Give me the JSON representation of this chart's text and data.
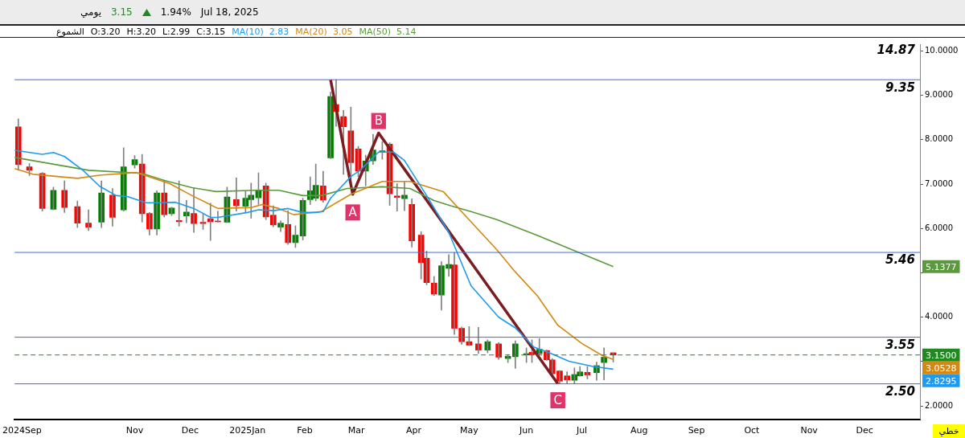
{
  "chart_data": {
    "type": "candlestick",
    "annotations": [
      "يومي",
      "3.15",
      "1.94%",
      "Jul 18, 2025",
      "الشموع",
      "O:3.20",
      "H:3.20",
      "L:2.99",
      "C:3.15",
      "14.87",
      "خطي",
      {
        "text": "A",
        "x": "2025-02-27",
        "y": 6.36
      },
      {
        "text": "B",
        "x": "2025-03-13",
        "y": 8.42
      },
      {
        "text": "C",
        "x": "2025-06-18",
        "y": 2.13
      },
      "2.83",
      "3.05",
      "5.14",
      "2.8295",
      "3.0528",
      "5.1377"
    ],
    "x": [
      "2024-08-30",
      "2024-09-05",
      "2024-09-12",
      "2024-09-18",
      "2024-09-24",
      "2024-10-01",
      "2024-10-07",
      "2024-10-14",
      "2024-10-20",
      "2024-10-26",
      "2024-11-01",
      "2024-11-05",
      "2024-11-09",
      "2024-11-13",
      "2024-11-17",
      "2024-11-21",
      "2024-11-25",
      "2024-11-29",
      "2024-12-03",
      "2024-12-08",
      "2024-12-12",
      "2024-12-16",
      "2024-12-21",
      "2024-12-26",
      "2024-12-31",
      "2025-01-03",
      "2025-01-07",
      "2025-01-11",
      "2025-01-15",
      "2025-01-19",
      "2025-01-23",
      "2025-01-27",
      "2025-01-31",
      "2025-02-04",
      "2025-02-07",
      "2025-02-11",
      "2025-02-15",
      "2025-02-18",
      "2025-02-22",
      "2025-02-26",
      "2025-03-02",
      "2025-03-06",
      "2025-03-10",
      "2025-03-15",
      "2025-03-19",
      "2025-03-23",
      "2025-03-27",
      "2025-03-31",
      "2025-04-05",
      "2025-04-08",
      "2025-04-12",
      "2025-04-16",
      "2025-04-20",
      "2025-04-23",
      "2025-04-27",
      "2025-05-01",
      "2025-05-06",
      "2025-05-11",
      "2025-05-17",
      "2025-05-22",
      "2025-05-26",
      "2025-06-01",
      "2025-06-04",
      "2025-06-08",
      "2025-06-12",
      "2025-06-15",
      "2025-06-19",
      "2025-06-23",
      "2025-06-27",
      "2025-06-30",
      "2025-07-04",
      "2025-07-09",
      "2025-07-13",
      "2025-07-18"
    ],
    "ohlc": [
      [
        8.29,
        8.47,
        7.31,
        7.44
      ],
      [
        7.39,
        7.46,
        7.19,
        7.31
      ],
      [
        7.24,
        7.26,
        6.39,
        6.45
      ],
      [
        6.43,
        6.93,
        6.42,
        6.86
      ],
      [
        6.86,
        7.07,
        6.36,
        6.47
      ],
      [
        6.49,
        6.62,
        6.02,
        6.12
      ],
      [
        6.12,
        6.42,
        5.95,
        6.03
      ],
      [
        6.14,
        7.07,
        6.02,
        6.8
      ],
      [
        6.75,
        6.9,
        6.05,
        6.25
      ],
      [
        6.42,
        7.82,
        6.39,
        7.39
      ],
      [
        7.43,
        7.64,
        7.36,
        7.55
      ],
      [
        7.45,
        7.67,
        6.14,
        6.33
      ],
      [
        6.34,
        6.36,
        5.85,
        5.99
      ],
      [
        5.99,
        6.85,
        5.85,
        6.8
      ],
      [
        6.8,
        7.09,
        6.26,
        6.31
      ],
      [
        6.33,
        6.48,
        6.29,
        6.46
      ],
      [
        6.18,
        7.07,
        6.05,
        6.15
      ],
      [
        6.28,
        6.63,
        6.13,
        6.37
      ],
      [
        6.34,
        6.91,
        5.91,
        6.11
      ],
      [
        6.14,
        6.33,
        5.98,
        6.11
      ],
      [
        6.22,
        6.57,
        5.73,
        6.15
      ],
      [
        6.16,
        6.39,
        6.14,
        6.15
      ],
      [
        6.14,
        6.93,
        6.13,
        6.71
      ],
      [
        6.65,
        7.14,
        6.39,
        6.51
      ],
      [
        6.5,
        6.83,
        6.37,
        6.68
      ],
      [
        6.65,
        7.02,
        6.23,
        6.75
      ],
      [
        6.69,
        7.25,
        6.54,
        6.86
      ],
      [
        6.96,
        7.02,
        6.2,
        6.26
      ],
      [
        6.3,
        6.51,
        6.04,
        6.08
      ],
      [
        6.03,
        6.17,
        5.93,
        6.12
      ],
      [
        6.09,
        6.4,
        5.64,
        5.68
      ],
      [
        5.68,
        6.06,
        5.57,
        5.85
      ],
      [
        5.83,
        6.68,
        5.74,
        6.63
      ],
      [
        6.65,
        7.16,
        6.54,
        6.85
      ],
      [
        6.68,
        7.45,
        6.62,
        6.97
      ],
      [
        6.96,
        7.29,
        6.59,
        6.64
      ],
      [
        7.59,
        9.07,
        7.57,
        8.97
      ],
      [
        8.79,
        9.35,
        8.3,
        8.63
      ],
      [
        8.52,
        8.66,
        7.22,
        8.29
      ],
      [
        8.2,
        8.73,
        7.01,
        7.48
      ],
      [
        7.79,
        7.85,
        7.17,
        7.29
      ],
      [
        7.29,
        7.65,
        6.96,
        7.52
      ],
      [
        7.52,
        8.12,
        7.44,
        7.77
      ],
      [
        7.73,
        7.96,
        7.56,
        7.75
      ],
      [
        7.9,
        7.93,
        6.52,
        6.78
      ],
      [
        6.73,
        7.01,
        6.39,
        6.7
      ],
      [
        6.67,
        7.05,
        6.4,
        6.75
      ],
      [
        6.54,
        6.67,
        5.58,
        5.72
      ],
      [
        5.85,
        5.93,
        4.86,
        5.23
      ],
      [
        5.33,
        5.49,
        4.73,
        4.78
      ],
      [
        4.77,
        4.92,
        4.49,
        4.52
      ],
      [
        4.5,
        5.25,
        4.16,
        5.16
      ],
      [
        5.1,
        5.41,
        4.92,
        5.19
      ],
      [
        5.18,
        5.46,
        3.61,
        3.75
      ],
      [
        3.75,
        3.78,
        3.39,
        3.45
      ],
      [
        3.45,
        3.79,
        3.36,
        3.37
      ],
      [
        3.4,
        3.77,
        3.18,
        3.26
      ],
      [
        3.26,
        3.49,
        3.2,
        3.45
      ],
      [
        3.4,
        3.43,
        3.05,
        3.1
      ],
      [
        3.07,
        3.16,
        2.98,
        3.12
      ],
      [
        3.11,
        3.47,
        2.85,
        3.4
      ],
      [
        3.15,
        3.31,
        2.98,
        3.18
      ],
      [
        3.21,
        3.49,
        2.98,
        3.16
      ],
      [
        3.18,
        3.52,
        3.16,
        3.28
      ],
      [
        3.25,
        3.26,
        3.03,
        3.04
      ],
      [
        3.04,
        3.07,
        2.65,
        2.73
      ],
      [
        2.79,
        2.8,
        2.5,
        2.56
      ],
      [
        2.68,
        2.77,
        2.5,
        2.59
      ],
      [
        2.58,
        2.86,
        2.5,
        2.71
      ],
      [
        2.68,
        2.89,
        2.67,
        2.77
      ],
      [
        2.76,
        2.89,
        2.61,
        2.7
      ],
      [
        2.75,
        2.99,
        2.58,
        2.91
      ],
      [
        2.98,
        3.31,
        2.59,
        3.1
      ],
      [
        3.2,
        3.2,
        2.99,
        3.15
      ]
    ],
    "colors": [
      "#ff0000",
      "#ff0000",
      "#ff0000",
      "#008000",
      "#ff0000",
      "#ff0000",
      "#ff0000",
      "#008000",
      "#ff0000",
      "#008000",
      "#008000",
      "#ff0000",
      "#ff0000",
      "#008000",
      "#ff0000",
      "#008000",
      "#ff0000",
      "#008000",
      "#ff0000",
      "#ff0000",
      "#ff0000",
      "#ff0000",
      "#008000",
      "#ff0000",
      "#008000",
      "#008000",
      "#008000",
      "#ff0000",
      "#ff0000",
      "#008000",
      "#ff0000",
      "#008000",
      "#008000",
      "#008000",
      "#008000",
      "#ff0000",
      "#008000",
      "#ff0000",
      "#ff0000",
      "#ff0000",
      "#ff0000",
      "#008000",
      "#008000",
      "#008000",
      "#ff0000",
      "#ff0000",
      "#008000",
      "#ff0000",
      "#ff0000",
      "#ff0000",
      "#ff0000",
      "#008000",
      "#008000",
      "#ff0000",
      "#ff0000",
      "#ff0000",
      "#ff0000",
      "#008000",
      "#ff0000",
      "#008000",
      "#008000",
      "#008000",
      "#ff0000",
      "#008000",
      "#ff0000",
      "#ff0000",
      "#ff0000",
      "#ff0000",
      "#008000",
      "#008000",
      "#ff0000",
      "#008000",
      "#008000",
      "#ff0000"
    ],
    "series": [
      {
        "type": "line",
        "name": "MA(10)",
        "color": "#1e9bf0",
        "x": [
          "2024-08-28",
          "2024-09-12",
          "2024-09-18",
          "2024-09-24",
          "2024-10-04",
          "2024-10-13",
          "2024-10-22",
          "2024-10-28",
          "2024-11-07",
          "2024-11-13",
          "2024-11-23",
          "2024-12-03",
          "2024-12-12",
          "2024-12-16",
          "2025-01-01",
          "2025-01-07",
          "2025-01-15",
          "2025-01-23",
          "2025-01-31",
          "2025-02-07",
          "2025-02-11",
          "2025-02-15",
          "2025-02-26",
          "2025-03-03",
          "2025-03-13",
          "2025-03-21",
          "2025-03-27",
          "2025-04-08",
          "2025-04-20",
          "2025-05-02",
          "2025-05-17",
          "2025-05-26",
          "2025-06-05",
          "2025-06-14",
          "2025-06-24",
          "2025-07-07",
          "2025-07-18"
        ],
        "values": [
          7.76,
          7.67,
          7.71,
          7.62,
          7.31,
          6.95,
          6.74,
          6.72,
          6.58,
          6.58,
          6.59,
          6.45,
          6.25,
          6.25,
          6.36,
          6.42,
          6.4,
          6.45,
          6.36,
          6.36,
          6.38,
          6.68,
          7.17,
          7.31,
          7.72,
          7.72,
          7.53,
          6.74,
          5.91,
          4.71,
          4.0,
          3.76,
          3.33,
          3.19,
          3.01,
          2.89,
          2.83
        ]
      },
      {
        "type": "line",
        "name": "MA(20)",
        "color": "#d4880f",
        "x": [
          "2024-08-28",
          "2024-09-07",
          "2024-10-01",
          "2024-10-13",
          "2024-11-02",
          "2024-11-11",
          "2024-11-20",
          "2024-12-02",
          "2024-12-16",
          "2025-01-03",
          "2025-01-09",
          "2025-01-18",
          "2025-01-26",
          "2025-02-10",
          "2025-02-26",
          "2025-03-15",
          "2025-03-30",
          "2025-04-17",
          "2025-04-30",
          "2025-05-16",
          "2025-05-26",
          "2025-06-07",
          "2025-06-18",
          "2025-07-01",
          "2025-07-12",
          "2025-07-18"
        ],
        "values": [
          7.35,
          7.22,
          7.13,
          7.2,
          7.26,
          7.13,
          7.01,
          6.74,
          6.45,
          6.47,
          6.54,
          6.45,
          6.31,
          6.38,
          6.77,
          7.06,
          7.06,
          6.83,
          6.24,
          5.52,
          5.02,
          4.48,
          3.82,
          3.41,
          3.14,
          3.05
        ]
      },
      {
        "type": "line",
        "name": "MA(50)",
        "color": "#5a9a3c",
        "x": [
          "2024-08-28",
          "2024-10-07",
          "2024-11-05",
          "2024-11-17",
          "2024-12-02",
          "2024-12-15",
          "2025-01-05",
          "2025-01-18",
          "2025-01-31",
          "2025-02-10",
          "2025-02-24",
          "2025-03-15",
          "2025-03-30",
          "2025-04-12",
          "2025-04-21",
          "2025-05-02",
          "2025-05-16",
          "2025-06-07",
          "2025-07-01",
          "2025-07-18"
        ],
        "values": [
          7.6,
          7.31,
          7.24,
          7.08,
          6.92,
          6.83,
          6.86,
          6.86,
          6.74,
          6.74,
          6.9,
          6.94,
          6.9,
          6.63,
          6.51,
          6.38,
          6.2,
          5.84,
          5.43,
          5.14
        ]
      },
      {
        "type": "line",
        "color": "#7b1c20",
        "x": [
          "2025-02-15",
          "2025-02-27",
          "2025-03-13",
          "2025-06-18"
        ],
        "values": [
          9.35,
          6.77,
          8.15,
          2.5
        ]
      }
    ],
    "ref_lines": [
      {
        "axis": "y",
        "value": 9.35,
        "label": "9.35",
        "color": "#4169e1"
      },
      {
        "axis": "y",
        "value": 5.46,
        "label": "5.46",
        "color": "#4169e1"
      },
      {
        "axis": "y",
        "value": 3.55,
        "label": "3.55",
        "color": "#4169e1"
      },
      {
        "axis": "y",
        "value": 2.5,
        "label": "2.50",
        "color": "#4169e1"
      },
      {
        "axis": "y",
        "value": 3.15,
        "label": "3.1500",
        "color": "#1f8a1f",
        "line_style": "dashed"
      }
    ],
    "xlim": [
      "2024-08-28",
      "2025-12-31"
    ],
    "xticks": [
      {
        "value": "2024-09-01",
        "label": "2024Sep"
      },
      {
        "value": "2024-11-01",
        "label": "Nov"
      },
      {
        "value": "2024-12-01",
        "label": "Dec"
      },
      {
        "value": "2025-01-01",
        "label": "2025Jan"
      },
      {
        "value": "2025-02-01",
        "label": "Feb"
      },
      {
        "value": "2025-03-01",
        "label": "Mar"
      },
      {
        "value": "2025-04-01",
        "label": "Apr"
      },
      {
        "value": "2025-05-01",
        "label": "May"
      },
      {
        "value": "2025-06-01",
        "label": "Jun"
      },
      {
        "value": "2025-07-01",
        "label": "Jul"
      },
      {
        "value": "2025-08-01",
        "label": "Aug"
      },
      {
        "value": "2025-09-01",
        "label": "Sep"
      },
      {
        "value": "2025-10-01",
        "label": "Oct"
      },
      {
        "value": "2025-11-01",
        "label": "Nov"
      },
      {
        "value": "2025-12-01",
        "label": "Dec"
      }
    ],
    "ylim": [
      1.7,
      10.15
    ],
    "yticks": [
      {
        "value": 2,
        "label": "2.0000"
      },
      {
        "value": 3,
        "label": null
      },
      {
        "value": 4,
        "label": "4.0000"
      },
      {
        "value": 5,
        "label": null
      },
      {
        "value": 6,
        "label": "6.0000"
      },
      {
        "value": 7,
        "label": "7.0000"
      },
      {
        "value": 8,
        "label": "8.0000"
      },
      {
        "value": 9,
        "label": "9.0000"
      },
      {
        "value": 10,
        "label": "10.0000"
      }
    ],
    "legend": "top",
    "grid": false,
    "marker": "none",
    "line_style": "solid"
  }
}
